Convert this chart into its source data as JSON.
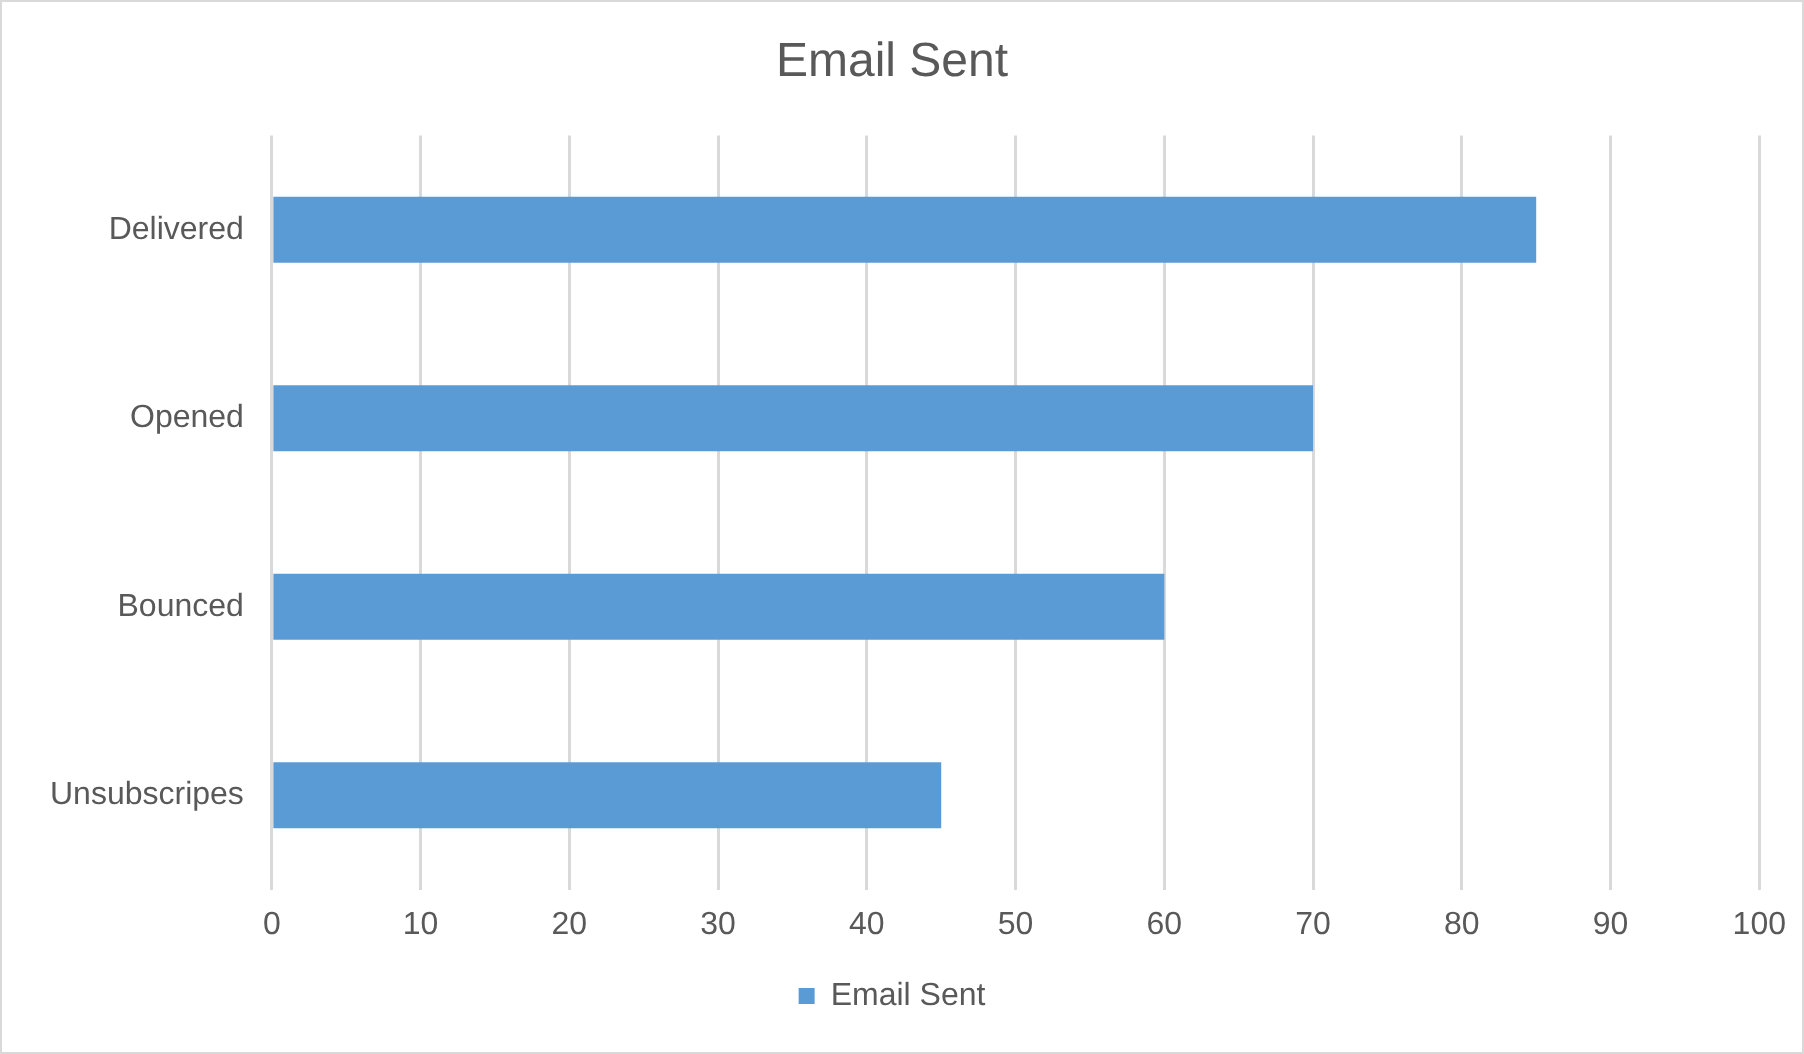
{
  "chart_data": {
    "type": "bar",
    "title": "Email Sent",
    "orientation": "horizontal",
    "categories": [
      "Delivered",
      "Opened",
      "Bounced",
      "Unsubscripes"
    ],
    "series": [
      {
        "name": "Email Sent",
        "color": "#5b9bd5",
        "values": [
          85,
          70,
          60,
          45
        ]
      }
    ],
    "xlim": [
      0,
      100
    ],
    "xticks": [
      0,
      10,
      20,
      30,
      40,
      50,
      60,
      70,
      80,
      90,
      100
    ],
    "grid": "x",
    "legend": "bottom"
  }
}
